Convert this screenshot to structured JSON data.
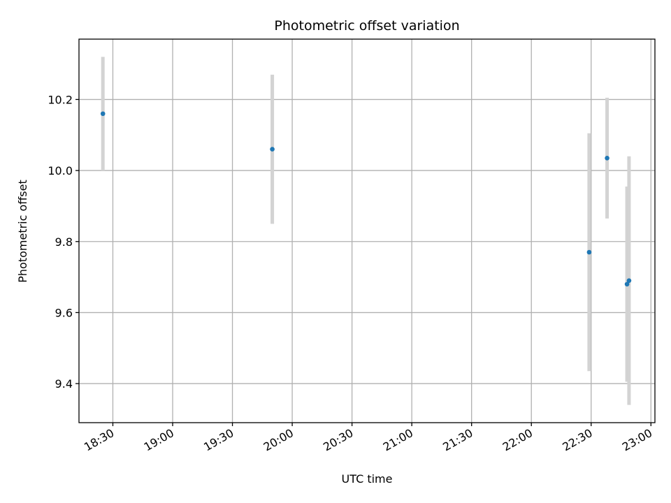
{
  "chart_data": {
    "type": "scatter",
    "title": "Photometric offset variation",
    "xlabel": "UTC time",
    "ylabel": "Photometric offset",
    "x_ticks": [
      "18:30",
      "19:00",
      "19:30",
      "20:00",
      "20:30",
      "21:00",
      "21:30",
      "22:00",
      "22:30",
      "23:00"
    ],
    "y_ticks": [
      "9.4",
      "9.6",
      "9.8",
      "10.0",
      "10.2"
    ],
    "xlim": [
      "18:13",
      "23:02"
    ],
    "ylim": [
      9.29,
      10.37
    ],
    "grid": true,
    "points": [
      {
        "x": "18:25",
        "y": 10.16,
        "err": 0.16
      },
      {
        "x": "19:50",
        "y": 10.06,
        "err": 0.21
      },
      {
        "x": "22:29",
        "y": 9.77,
        "err": 0.335
      },
      {
        "x": "22:38",
        "y": 10.035,
        "err": 0.17
      },
      {
        "x": "22:48",
        "y": 9.68,
        "err": 0.275
      },
      {
        "x": "22:49",
        "y": 9.69,
        "err": 0.35
      }
    ],
    "colors": {
      "marker": "#1f77b4",
      "errorbar": "#d3d3d3",
      "grid": "#b0b0b0"
    }
  }
}
